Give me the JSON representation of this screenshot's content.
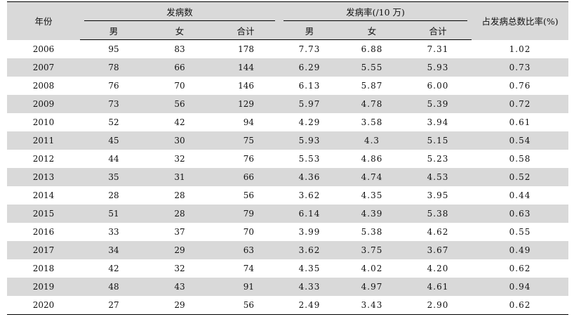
{
  "headers": {
    "year": "年份",
    "cases_group": "发病数",
    "rate_group": "发病率(/10 万)",
    "ratio": "占发病总数比率(%)",
    "sub": [
      "男",
      "女",
      "合计",
      "男",
      "女",
      "合计"
    ]
  },
  "rows": [
    {
      "year": "2006",
      "m": "95",
      "f": "83",
      "total": "178",
      "rm": "7.73",
      "rf": "6.88",
      "rt": "7.31",
      "ratio": "1.02"
    },
    {
      "year": "2007",
      "m": "78",
      "f": "66",
      "total": "144",
      "rm": "6.29",
      "rf": "5.55",
      "rt": "5.93",
      "ratio": "0.73"
    },
    {
      "year": "2008",
      "m": "76",
      "f": "70",
      "total": "146",
      "rm": "6.13",
      "rf": "5.87",
      "rt": "6.00",
      "ratio": "0.76"
    },
    {
      "year": "2009",
      "m": "73",
      "f": "56",
      "total": "129",
      "rm": "5.97",
      "rf": "4.78",
      "rt": "5.39",
      "ratio": "0.72"
    },
    {
      "year": "2010",
      "m": "52",
      "f": "42",
      "total": "94",
      "rm": "4.29",
      "rf": "3.58",
      "rt": "3.94",
      "ratio": "0.61"
    },
    {
      "year": "2011",
      "m": "45",
      "f": "30",
      "total": "75",
      "rm": "5.93",
      "rf": "4.3",
      "rt": "5.15",
      "ratio": "0.54"
    },
    {
      "year": "2012",
      "m": "44",
      "f": "32",
      "total": "76",
      "rm": "5.53",
      "rf": "4.86",
      "rt": "5.23",
      "ratio": "0.58"
    },
    {
      "year": "2013",
      "m": "35",
      "f": "31",
      "total": "66",
      "rm": "4.36",
      "rf": "4.74",
      "rt": "4.53",
      "ratio": "0.52"
    },
    {
      "year": "2014",
      "m": "28",
      "f": "28",
      "total": "56",
      "rm": "3.62",
      "rf": "4.35",
      "rt": "3.95",
      "ratio": "0.44"
    },
    {
      "year": "2015",
      "m": "51",
      "f": "28",
      "total": "79",
      "rm": "6.14",
      "rf": "4.39",
      "rt": "5.38",
      "ratio": "0.63"
    },
    {
      "year": "2016",
      "m": "33",
      "f": "37",
      "total": "70",
      "rm": "3.99",
      "rf": "5.38",
      "rt": "4.62",
      "ratio": "0.55"
    },
    {
      "year": "2017",
      "m": "34",
      "f": "29",
      "total": "63",
      "rm": "3.62",
      "rf": "3.75",
      "rt": "3.67",
      "ratio": "0.49"
    },
    {
      "year": "2018",
      "m": "42",
      "f": "32",
      "total": "74",
      "rm": "4.35",
      "rf": "4.02",
      "rt": "4.20",
      "ratio": "0.62"
    },
    {
      "year": "2019",
      "m": "48",
      "f": "43",
      "total": "91",
      "rm": "4.33",
      "rf": "4.97",
      "rt": "4.61",
      "ratio": "0.94"
    },
    {
      "year": "2020",
      "m": "27",
      "f": "29",
      "total": "56",
      "rm": "2.49",
      "rf": "3.43",
      "rt": "2.90",
      "ratio": "0.62"
    }
  ],
  "colors": {
    "stripe": "#d9d9d9",
    "rule": "#000000"
  }
}
